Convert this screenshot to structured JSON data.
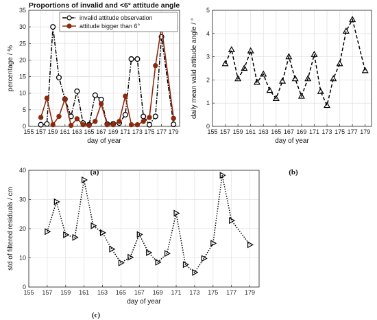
{
  "chart_data": [
    {
      "id": "a",
      "type": "line",
      "title": "Proportions of invalid and <6° attitude angle",
      "caption": "(a)",
      "xlabel": "day of year",
      "ylabel": "percentage / %",
      "xlim": [
        155,
        180
      ],
      "ylim": [
        0,
        35
      ],
      "xticks": [
        155,
        157,
        159,
        161,
        163,
        165,
        167,
        169,
        171,
        173,
        175,
        177,
        179
      ],
      "yticks": [
        0,
        5,
        10,
        15,
        20,
        25,
        30,
        35
      ],
      "grid": true,
      "legend": "top",
      "series": [
        {
          "name": "invalid attitude observation",
          "color": "#000000",
          "marker": "circle-open",
          "line": "dashdot",
          "x": [
            157,
            158,
            159,
            160,
            161,
            162,
            163,
            164,
            165,
            166,
            167,
            168,
            169,
            170,
            171,
            172,
            173,
            174,
            175,
            176,
            177,
            179
          ],
          "y": [
            0.5,
            0.7,
            30.0,
            14.7,
            8.2,
            3.0,
            10.6,
            1.0,
            0.5,
            9.4,
            8.1,
            0.7,
            0.8,
            1.0,
            3.5,
            20.3,
            20.3,
            3.0,
            0.5,
            3.0,
            27.0,
            0.6
          ]
        },
        {
          "name": "attitude bigger than 6°",
          "color": "#8b2a0e",
          "marker": "circle-filled",
          "line": "solid",
          "x": [
            157,
            158,
            159,
            160,
            161,
            162,
            163,
            164,
            165,
            166,
            167,
            168,
            169,
            170,
            171,
            172,
            173,
            174,
            175,
            176,
            177,
            179
          ],
          "y": [
            2.7,
            8.5,
            0.5,
            3.0,
            8.2,
            0.3,
            2.3,
            0.5,
            0.3,
            1.5,
            6.8,
            0.5,
            0.5,
            1.5,
            9.1,
            0.5,
            0.5,
            1.5,
            2.7,
            18.3,
            30.0,
            2.4
          ]
        }
      ]
    },
    {
      "id": "b",
      "type": "line",
      "caption": "(b)",
      "xlabel": "day of year",
      "ylabel": "daily mean valid attitude angle / °",
      "xlim": [
        155,
        180
      ],
      "ylim": [
        0,
        5
      ],
      "xticks": [
        155,
        157,
        159,
        161,
        163,
        165,
        167,
        169,
        171,
        173,
        175,
        177,
        179
      ],
      "yticks": [
        0,
        1,
        2,
        3,
        4,
        5
      ],
      "grid": true,
      "series": [
        {
          "color": "#000000",
          "marker": "triangle-up-open",
          "line": "dashed",
          "x": [
            157,
            158,
            159,
            160,
            161,
            162,
            163,
            164,
            165,
            166,
            167,
            168,
            169,
            170,
            171,
            172,
            173,
            174,
            175,
            176,
            177,
            179
          ],
          "y": [
            2.7,
            3.3,
            2.05,
            2.5,
            3.25,
            1.9,
            2.25,
            1.55,
            1.2,
            1.95,
            3.0,
            2.05,
            1.3,
            2.05,
            3.1,
            1.5,
            0.9,
            2.05,
            2.7,
            4.1,
            4.6,
            2.4
          ]
        }
      ]
    },
    {
      "id": "c",
      "type": "line",
      "caption": "(c)",
      "xlabel": "day of year",
      "ylabel": "std of filtered residuals / cm",
      "xlim": [
        155,
        180
      ],
      "ylim": [
        0,
        40
      ],
      "xticks": [
        155,
        157,
        159,
        161,
        163,
        165,
        167,
        169,
        171,
        173,
        175,
        177,
        179
      ],
      "yticks": [
        0,
        10,
        20,
        30,
        40
      ],
      "grid": true,
      "series": [
        {
          "color": "#000000",
          "marker": "triangle-right-open",
          "line": "dotted",
          "x": [
            157,
            158,
            159,
            160,
            161,
            162,
            163,
            164,
            165,
            166,
            167,
            168,
            169,
            170,
            171,
            172,
            173,
            174,
            175,
            176,
            177,
            179
          ],
          "y": [
            19.0,
            29.2,
            17.9,
            17.0,
            36.7,
            21.0,
            18.6,
            13.0,
            8.3,
            10.2,
            18.0,
            11.8,
            8.5,
            11.5,
            25.3,
            7.7,
            5.0,
            9.8,
            15.0,
            38.3,
            22.8,
            14.5
          ]
        }
      ]
    }
  ]
}
